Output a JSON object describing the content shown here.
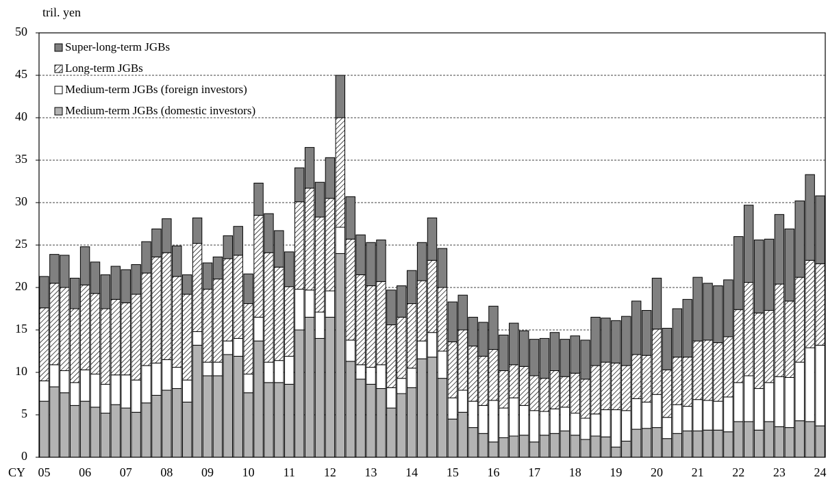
{
  "chart_data": {
    "type": "stacked_bar",
    "ylabel": "tril. yen",
    "xlabel": "CY",
    "categories": [
      "05",
      null,
      null,
      null,
      "06",
      null,
      null,
      null,
      "07",
      null,
      null,
      null,
      "08",
      null,
      null,
      null,
      "09",
      null,
      null,
      null,
      "10",
      null,
      null,
      null,
      "11",
      null,
      null,
      null,
      "12",
      null,
      null,
      null,
      "13",
      null,
      null,
      null,
      "14",
      null,
      null,
      null,
      "15",
      null,
      null,
      null,
      "16",
      null,
      null,
      null,
      "17",
      null,
      null,
      null,
      "18",
      null,
      null,
      null,
      "19",
      null,
      null,
      null,
      "20",
      null,
      null,
      null,
      "21",
      null,
      null,
      null,
      "22",
      null,
      null,
      null,
      "23",
      null,
      null,
      null,
      "24"
    ],
    "ylim": [
      0,
      50
    ],
    "yticks": [
      0,
      5,
      10,
      15,
      20,
      25,
      30,
      35,
      40,
      45,
      50
    ],
    "grid": true,
    "legend": "upper left",
    "series": [
      {
        "name": "Medium-term JGBs (domestic investors)",
        "color": "#b3b3b3",
        "values": [
          6.6,
          8.3,
          7.6,
          6.1,
          6.6,
          5.9,
          5.2,
          6.2,
          5.8,
          5.3,
          6.4,
          7.3,
          7.9,
          8.1,
          6.5,
          13.2,
          9.6,
          9.6,
          12.1,
          11.9,
          7.6,
          13.7,
          8.8,
          8.8,
          8.6,
          15.0,
          16.5,
          14.0,
          16.5,
          24.0,
          11.3,
          9.2,
          8.6,
          8.1,
          5.8,
          7.5,
          8.2,
          11.6,
          11.8,
          9.3,
          4.5,
          5.3,
          3.5,
          2.8,
          1.8,
          2.3,
          2.5,
          2.6,
          1.8,
          2.6,
          2.8,
          3.1,
          2.6,
          2.1,
          2.5,
          2.4,
          1.2,
          1.9,
          3.3,
          3.4,
          3.5,
          2.2,
          2.8,
          3.1,
          3.1,
          3.2,
          3.2,
          3.0,
          4.2,
          4.2,
          3.2,
          4.2,
          3.6,
          3.5,
          4.3,
          4.2,
          3.7
        ]
      },
      {
        "name": "Medium-term JGBs (foreign investors)",
        "color": "#ffffff",
        "values": [
          2.4,
          2.6,
          2.6,
          2.7,
          3.7,
          3.9,
          3.4,
          3.5,
          3.9,
          3.8,
          4.4,
          3.8,
          3.6,
          2.5,
          2.6,
          1.6,
          1.6,
          1.6,
          1.6,
          2.1,
          2.2,
          2.8,
          2.4,
          2.6,
          3.3,
          4.8,
          3.2,
          3.1,
          3.1,
          3.1,
          2.5,
          1.7,
          2.0,
          2.8,
          2.4,
          1.8,
          2.3,
          2.1,
          2.9,
          3.2,
          2.5,
          2.6,
          3.1,
          3.3,
          4.9,
          3.5,
          4.5,
          3.5,
          3.7,
          2.8,
          2.9,
          2.8,
          2.6,
          2.5,
          2.6,
          3.2,
          4.4,
          3.6,
          3.6,
          3.1,
          3.9,
          2.5,
          3.4,
          2.9,
          3.7,
          3.5,
          3.4,
          4.1,
          4.6,
          5.4,
          4.9,
          4.6,
          5.9,
          5.9,
          6.9,
          8.7,
          9.5
        ]
      },
      {
        "name": "Long-term JGBs",
        "color": "#000000",
        "hatch": true,
        "values": [
          8.6,
          9.6,
          9.8,
          8.7,
          10.0,
          9.5,
          8.9,
          8.9,
          8.5,
          10.1,
          10.9,
          12.5,
          12.6,
          10.7,
          10.1,
          10.4,
          8.6,
          9.8,
          9.7,
          9.8,
          8.3,
          12.0,
          12.9,
          11.0,
          8.2,
          10.3,
          12.0,
          11.2,
          10.9,
          12.9,
          11.9,
          10.6,
          9.6,
          9.8,
          7.4,
          7.2,
          7.6,
          7.1,
          8.5,
          7.5,
          6.6,
          7.1,
          6.5,
          5.8,
          6.0,
          4.4,
          3.9,
          4.6,
          4.1,
          3.9,
          4.5,
          3.6,
          4.7,
          4.6,
          5.7,
          5.6,
          5.5,
          5.3,
          5.2,
          5.5,
          7.7,
          5.6,
          5.6,
          5.8,
          6.9,
          7.1,
          6.9,
          7.1,
          8.6,
          11.0,
          8.9,
          8.5,
          10.9,
          9.0,
          10.0,
          10.3,
          9.6
        ]
      },
      {
        "name": "Super-long-term JGBs",
        "color": "#808080",
        "values": [
          3.7,
          3.4,
          3.8,
          3.6,
          4.5,
          3.7,
          4.0,
          3.9,
          3.9,
          3.5,
          3.7,
          3.3,
          4.0,
          3.6,
          2.3,
          3.0,
          3.1,
          2.6,
          2.7,
          3.4,
          3.5,
          3.8,
          4.6,
          4.3,
          4.1,
          4.0,
          4.8,
          4.1,
          4.8,
          5.0,
          5.0,
          4.7,
          5.1,
          4.9,
          4.1,
          3.7,
          3.9,
          4.5,
          5.0,
          4.6,
          4.7,
          4.1,
          3.4,
          4.0,
          5.1,
          4.2,
          4.9,
          4.2,
          4.3,
          4.7,
          4.5,
          4.4,
          4.4,
          4.6,
          5.7,
          5.2,
          5.0,
          5.8,
          6.3,
          5.3,
          6.0,
          4.9,
          5.7,
          6.8,
          7.5,
          6.7,
          6.7,
          6.7,
          8.6,
          9.1,
          8.6,
          8.4,
          8.2,
          8.5,
          9.0,
          10.1,
          8.0
        ]
      }
    ]
  }
}
